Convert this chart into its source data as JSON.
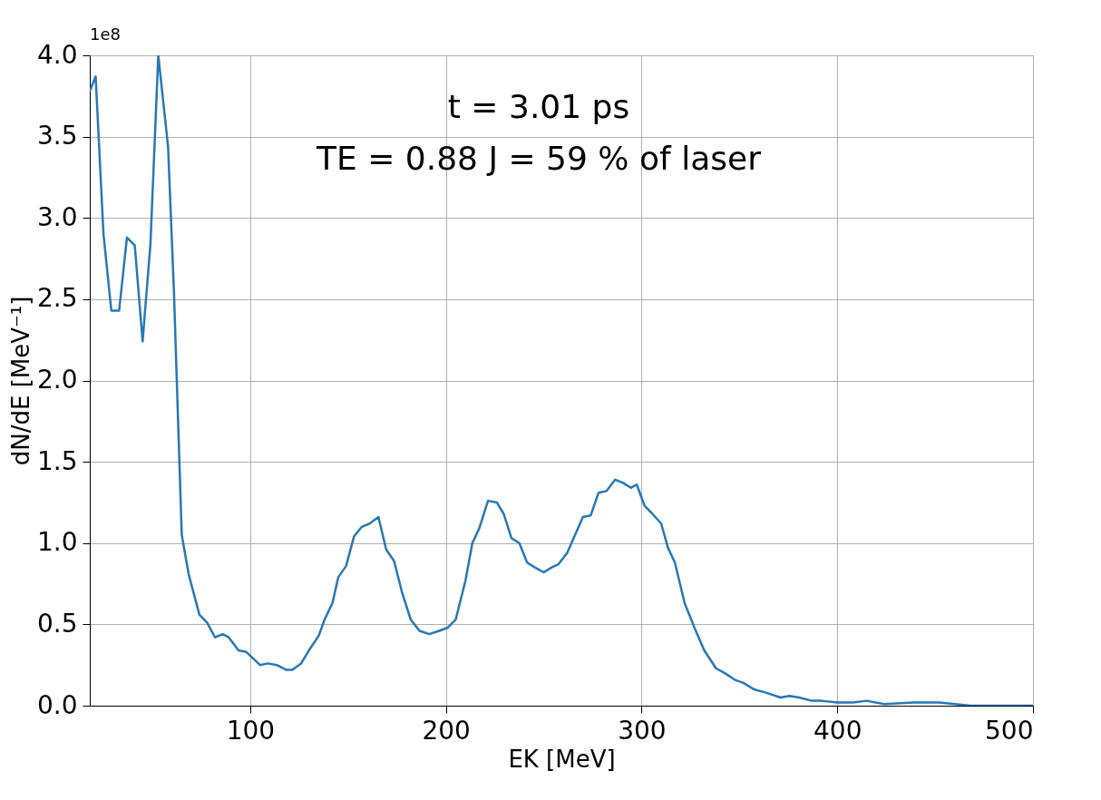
{
  "chart_data": {
    "type": "line",
    "xlabel": "EK [MeV]",
    "ylabel": "dN/dE [MeV⁻¹]",
    "annotations": [
      "1e8",
      "t = 3.01 ps",
      "TE = 0.88 J = 59 % of laser"
    ],
    "xlim": [
      18,
      500
    ],
    "xticks": [
      100,
      200,
      300,
      400,
      500
    ],
    "ylim": [
      0,
      4.0
    ],
    "yticks": [
      {
        "value": 0,
        "label": "0.0"
      },
      0.5,
      {
        "value": 1,
        "label": "1.0"
      },
      1.5,
      {
        "value": 2,
        "label": "2.0"
      },
      2.5,
      {
        "value": 3,
        "label": "3.0"
      },
      3.5,
      {
        "value": 4,
        "label": "4.0"
      }
    ],
    "grid": true,
    "line_style": "solid",
    "marker": "none",
    "series": [
      {
        "color": "#2878b5",
        "x": [
          18,
          21,
          25,
          29,
          33,
          37,
          41,
          45,
          49,
          53,
          58,
          61,
          65,
          68.5,
          74,
          78,
          82,
          86,
          89,
          94,
          98,
          105,
          109,
          113.5,
          118.5,
          121.5,
          126,
          130,
          135,
          138,
          142,
          145,
          149,
          153,
          157,
          161,
          165.5,
          169.5,
          173.5,
          177.5,
          182,
          186.5,
          191.5,
          196.5,
          201,
          205,
          210,
          213.5,
          217,
          221.5,
          226,
          229.5,
          233.5,
          237.5,
          241.5,
          245.5,
          250,
          254,
          257.5,
          262,
          266,
          270,
          274,
          278,
          282,
          286.5,
          290.5,
          294.5,
          297.5,
          301.5,
          305.5,
          310,
          313.5,
          317,
          322,
          327,
          332,
          338,
          342.5,
          347.5,
          352,
          357.5,
          363.5,
          371,
          375.5,
          380.5,
          387,
          392,
          400,
          408,
          415,
          424,
          439,
          452,
          468,
          500
        ],
        "values": [
          3.78,
          3.87,
          2.9,
          2.43,
          2.43,
          2.88,
          2.83,
          2.24,
          2.84,
          4.0,
          3.44,
          2.55,
          1.05,
          0.81,
          0.56,
          0.51,
          0.42,
          0.44,
          0.42,
          0.34,
          0.33,
          0.25,
          0.26,
          0.25,
          0.22,
          0.22,
          0.26,
          0.34,
          0.43,
          0.53,
          0.63,
          0.79,
          0.86,
          1.04,
          1.1,
          1.12,
          1.16,
          0.96,
          0.89,
          0.7,
          0.53,
          0.46,
          0.44,
          0.46,
          0.48,
          0.53,
          0.77,
          1.0,
          1.09,
          1.26,
          1.25,
          1.18,
          1.03,
          1.0,
          0.88,
          0.85,
          0.82,
          0.85,
          0.87,
          0.94,
          1.05,
          1.16,
          1.17,
          1.31,
          1.32,
          1.39,
          1.37,
          1.34,
          1.36,
          1.23,
          1.18,
          1.12,
          0.97,
          0.88,
          0.63,
          0.48,
          0.34,
          0.23,
          0.2,
          0.16,
          0.14,
          0.1,
          0.08,
          0.05,
          0.06,
          0.05,
          0.03,
          0.03,
          0.02,
          0.02,
          0.03,
          0.01,
          0.02,
          0.02,
          0.0,
          0.0
        ]
      }
    ]
  }
}
